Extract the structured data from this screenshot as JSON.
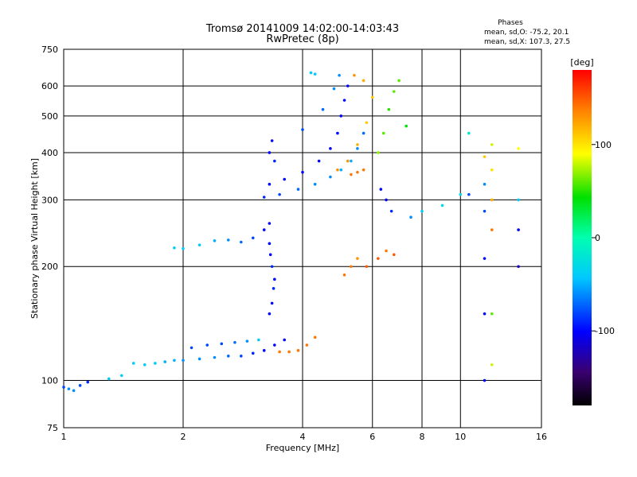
{
  "chart_data": {
    "type": "scatter",
    "title": "Tromsø 20141009 14:02:00-14:03:43",
    "subtitle": "RwPretec (8p)",
    "xlabel": "Frequency [MHz]",
    "ylabel": "Stationary phase Virtual Height [km]",
    "x_scale": "log",
    "y_scale": "log",
    "xlim": [
      1,
      16
    ],
    "ylim": [
      75,
      750
    ],
    "x_ticks": [
      1,
      2,
      4,
      6,
      8,
      10,
      16
    ],
    "y_ticks": [
      75,
      100,
      200,
      300,
      400,
      500,
      600,
      750
    ],
    "grid": true,
    "stats_title": "Phases",
    "stats_o": "mean, sd,O: -75.2, 20.1",
    "stats_x": "mean, sd,X: 107.3, 27.5",
    "colorbar": {
      "label": "[deg]",
      "range": [
        -180,
        180
      ],
      "ticks": [
        100,
        0,
        -100
      ],
      "colormap": "rainbow"
    },
    "series": [
      {
        "points": [
          [
            1.0,
            96,
            -80
          ],
          [
            1.03,
            95,
            -60
          ],
          [
            1.06,
            94,
            -60
          ],
          [
            1.1,
            97,
            -80
          ],
          [
            1.15,
            99,
            -90
          ],
          [
            1.3,
            101,
            -40
          ],
          [
            1.4,
            103,
            -40
          ]
        ]
      },
      {
        "points": [
          [
            1.5,
            111,
            -40
          ],
          [
            1.6,
            110,
            -40
          ],
          [
            1.7,
            111,
            -40
          ],
          [
            1.8,
            112,
            -50
          ],
          [
            1.9,
            113,
            -50
          ],
          [
            2.0,
            113,
            -60
          ],
          [
            2.2,
            114,
            -60
          ],
          [
            2.4,
            115,
            -60
          ],
          [
            2.6,
            116,
            -70
          ],
          [
            2.8,
            116,
            -80
          ],
          [
            3.0,
            118,
            -90
          ],
          [
            3.2,
            120,
            -100
          ],
          [
            3.4,
            124,
            -100
          ],
          [
            3.6,
            128,
            -100
          ]
        ]
      },
      {
        "points": [
          [
            2.1,
            122,
            -80
          ],
          [
            2.3,
            124,
            -80
          ],
          [
            2.5,
            125,
            -80
          ],
          [
            2.7,
            126,
            -70
          ],
          [
            2.9,
            127,
            -60
          ],
          [
            3.1,
            128,
            -40
          ]
        ]
      },
      {
        "points": [
          [
            3.5,
            119,
            140
          ],
          [
            3.7,
            119,
            140
          ],
          [
            3.9,
            120,
            140
          ],
          [
            4.1,
            124,
            140
          ],
          [
            4.3,
            130,
            140
          ]
        ]
      },
      {
        "points": [
          [
            3.3,
            150,
            -100
          ],
          [
            3.35,
            160,
            -100
          ],
          [
            3.38,
            175,
            -90
          ],
          [
            3.4,
            185,
            -100
          ],
          [
            3.35,
            200,
            -90
          ],
          [
            3.32,
            215,
            -100
          ],
          [
            3.3,
            230,
            -100
          ]
        ]
      },
      {
        "points": [
          [
            1.9,
            224,
            -40
          ],
          [
            2.0,
            223,
            -40
          ],
          [
            2.2,
            228,
            -40
          ],
          [
            2.4,
            234,
            -50
          ],
          [
            2.6,
            235,
            -60
          ],
          [
            2.8,
            232,
            -70
          ],
          [
            3.0,
            238,
            -80
          ],
          [
            3.2,
            250,
            -100
          ],
          [
            3.3,
            260,
            -100
          ]
        ]
      },
      {
        "points": [
          [
            3.2,
            305,
            -90
          ],
          [
            3.5,
            310,
            -80
          ],
          [
            3.9,
            320,
            -70
          ],
          [
            4.3,
            330,
            -60
          ],
          [
            4.7,
            345,
            -60
          ],
          [
            5.0,
            360,
            -50
          ],
          [
            5.3,
            380,
            -50
          ],
          [
            5.5,
            410,
            -60
          ],
          [
            5.7,
            450,
            -70
          ]
        ]
      },
      {
        "points": [
          [
            3.3,
            330,
            -100
          ],
          [
            3.6,
            340,
            -100
          ],
          [
            4.0,
            355,
            -100
          ],
          [
            4.4,
            380,
            -100
          ],
          [
            4.7,
            410,
            -100
          ],
          [
            4.9,
            450,
            -100
          ],
          [
            5.0,
            500,
            -100
          ],
          [
            5.1,
            550,
            -100
          ],
          [
            5.2,
            600,
            -100
          ]
        ]
      },
      {
        "points": [
          [
            3.3,
            400,
            -100
          ],
          [
            3.35,
            430,
            -100
          ],
          [
            3.4,
            380,
            -90
          ],
          [
            4.0,
            460,
            -80
          ],
          [
            4.5,
            520,
            -70
          ],
          [
            4.8,
            590,
            -60
          ],
          [
            4.95,
            640,
            -60
          ]
        ]
      },
      {
        "points": [
          [
            4.9,
            360,
            130
          ],
          [
            5.2,
            380,
            130
          ],
          [
            5.5,
            420,
            120
          ],
          [
            5.8,
            480,
            110
          ],
          [
            6.0,
            560,
            110
          ],
          [
            5.4,
            640,
            130
          ],
          [
            5.7,
            620,
            120
          ]
        ]
      },
      {
        "points": [
          [
            5.3,
            350,
            140
          ],
          [
            5.5,
            355,
            140
          ],
          [
            5.7,
            360,
            140
          ]
        ]
      },
      {
        "points": [
          [
            6.2,
            400,
            70
          ],
          [
            6.4,
            450,
            60
          ],
          [
            6.6,
            520,
            50
          ],
          [
            6.8,
            580,
            60
          ],
          [
            7.0,
            620,
            60
          ],
          [
            7.3,
            470,
            40
          ]
        ]
      },
      {
        "points": [
          [
            4.2,
            650,
            -40
          ],
          [
            4.3,
            645,
            -40
          ]
        ]
      },
      {
        "points": [
          [
            5.1,
            190,
            140
          ],
          [
            5.3,
            200,
            140
          ],
          [
            5.5,
            210,
            130
          ],
          [
            5.8,
            200,
            150
          ],
          [
            6.2,
            210,
            150
          ],
          [
            6.5,
            220,
            140
          ],
          [
            6.8,
            215,
            150
          ]
        ]
      },
      {
        "points": [
          [
            6.3,
            320,
            -100
          ],
          [
            6.5,
            300,
            -100
          ],
          [
            6.7,
            280,
            -90
          ],
          [
            7.5,
            270,
            -60
          ],
          [
            8.0,
            280,
            -40
          ],
          [
            9.0,
            290,
            -30
          ],
          [
            10.0,
            310,
            -30
          ]
        ]
      },
      {
        "points": [
          [
            12.0,
            420,
            80
          ],
          [
            12.0,
            360,
            100
          ],
          [
            12.0,
            300,
            120
          ],
          [
            12.0,
            250,
            140
          ],
          [
            12.0,
            150,
            60
          ],
          [
            12.0,
            110,
            80
          ],
          [
            14.0,
            410,
            90
          ],
          [
            14.0,
            300,
            -40
          ],
          [
            14.0,
            250,
            -100
          ],
          [
            14.0,
            200,
            -120
          ],
          [
            11.5,
            390,
            110
          ],
          [
            11.5,
            330,
            -60
          ],
          [
            11.5,
            280,
            -80
          ],
          [
            11.5,
            210,
            -100
          ],
          [
            11.5,
            150,
            -100
          ],
          [
            11.5,
            100,
            -100
          ],
          [
            10.5,
            450,
            -20
          ],
          [
            10.5,
            310,
            -80
          ]
        ]
      }
    ]
  }
}
